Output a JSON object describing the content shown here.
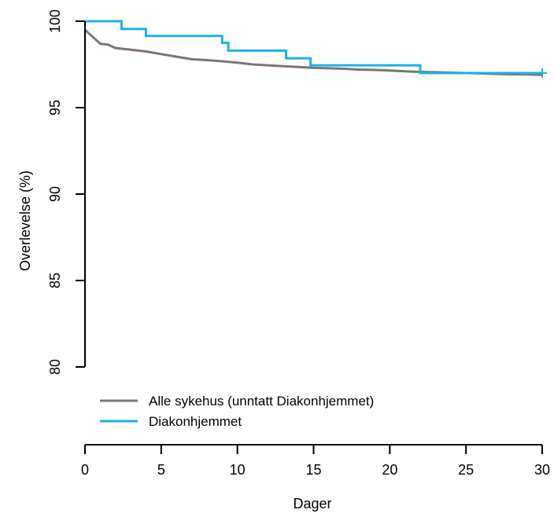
{
  "chart_data": {
    "type": "line",
    "subtype": "kaplan-meier",
    "title": "",
    "xlabel": "Dager",
    "ylabel": "Overlevelse (%)",
    "xlim": [
      0,
      30
    ],
    "ylim": [
      80,
      100
    ],
    "xticks": [
      0,
      5,
      10,
      15,
      20,
      25,
      30
    ],
    "yticks": [
      80,
      85,
      90,
      95,
      100
    ],
    "grid": false,
    "legend": {
      "position": "bottom-left"
    },
    "series": [
      {
        "name": "Alle sykehus (unntatt Diakonhjemmet)",
        "color": "#7f7470",
        "step": false,
        "points": [
          [
            0,
            99.5
          ],
          [
            0.5,
            99.1
          ],
          [
            1,
            98.7
          ],
          [
            1.5,
            98.65
          ],
          [
            2,
            98.45
          ],
          [
            3,
            98.35
          ],
          [
            4,
            98.25
          ],
          [
            5,
            98.1
          ],
          [
            6,
            97.95
          ],
          [
            7,
            97.8
          ],
          [
            8,
            97.75
          ],
          [
            9,
            97.68
          ],
          [
            10,
            97.6
          ],
          [
            11,
            97.5
          ],
          [
            12,
            97.45
          ],
          [
            13,
            97.4
          ],
          [
            14,
            97.35
          ],
          [
            15,
            97.3
          ],
          [
            16,
            97.28
          ],
          [
            17,
            97.25
          ],
          [
            18,
            97.2
          ],
          [
            19,
            97.18
          ],
          [
            20,
            97.15
          ],
          [
            21,
            97.1
          ],
          [
            22,
            97.07
          ],
          [
            23,
            97.05
          ],
          [
            24,
            97.02
          ],
          [
            25,
            97.0
          ],
          [
            26,
            96.98
          ],
          [
            27,
            96.95
          ],
          [
            28,
            96.93
          ],
          [
            29,
            96.92
          ],
          [
            30,
            96.9
          ]
        ]
      },
      {
        "name": "Diakonhjemmet",
        "color": "#1ab2e8",
        "step": true,
        "censor_end": true,
        "points": [
          [
            0,
            100
          ],
          [
            2.4,
            99.55
          ],
          [
            4.0,
            99.15
          ],
          [
            9.0,
            98.75
          ],
          [
            9.4,
            98.3
          ],
          [
            13.2,
            97.85
          ],
          [
            14.8,
            97.45
          ],
          [
            22.0,
            97.0
          ],
          [
            30,
            97.0
          ]
        ]
      }
    ]
  }
}
